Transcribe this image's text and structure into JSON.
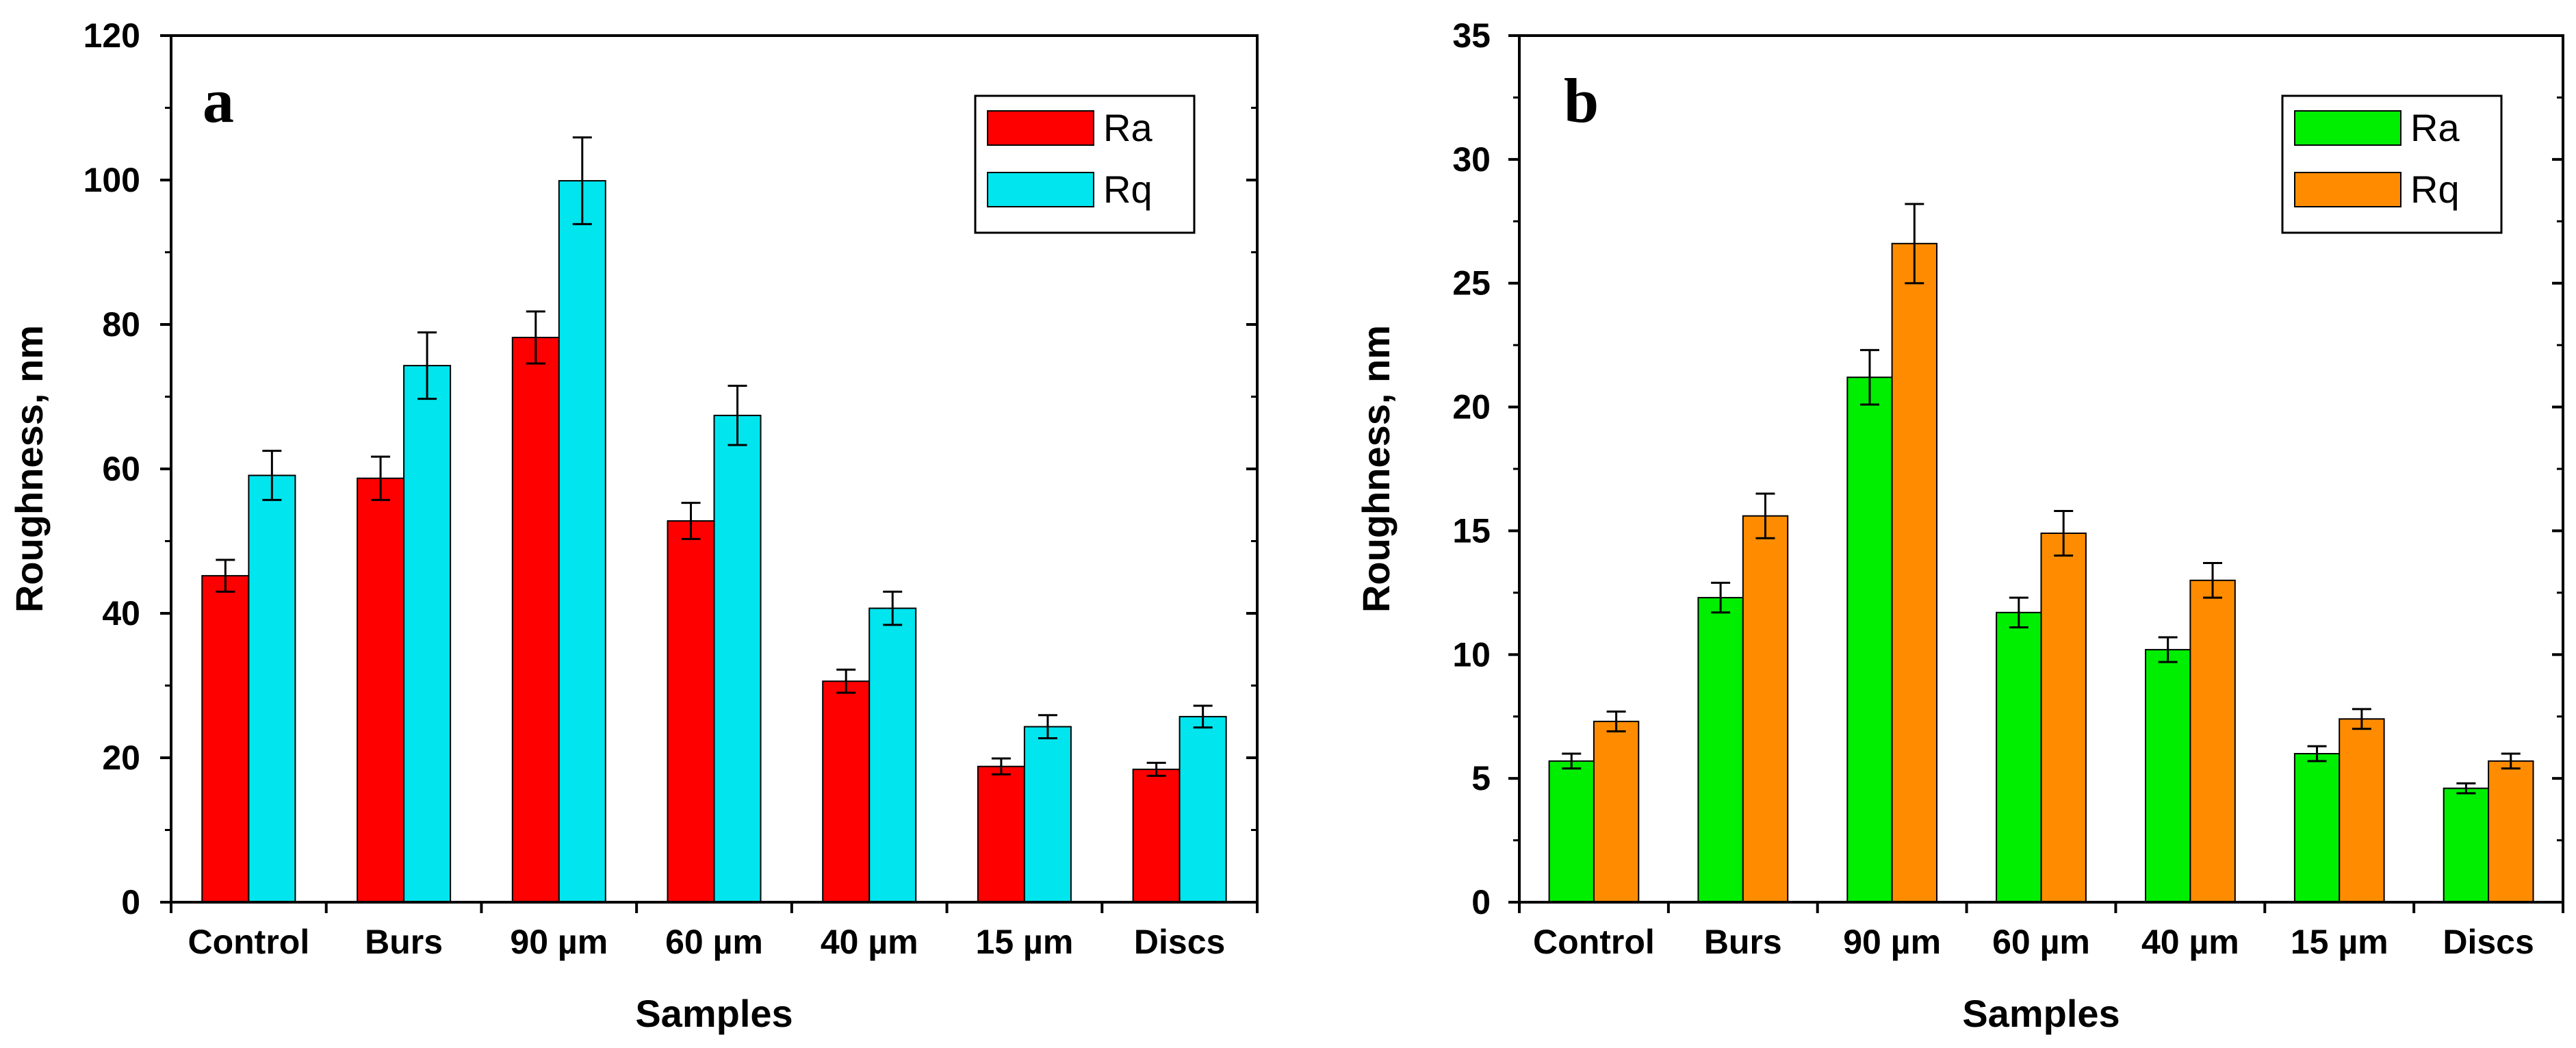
{
  "chart_data": [
    {
      "type": "bar",
      "panel_label": "a",
      "title": "",
      "xlabel": "Samples",
      "ylabel": "Roughness, nm",
      "categories": [
        "Control",
        "Burs",
        "90 µm",
        "60 µm",
        "40 µm",
        "15 µm",
        "Discs"
      ],
      "ylim": [
        0,
        120
      ],
      "yticks": [
        0,
        20,
        40,
        60,
        80,
        100,
        120
      ],
      "ytick_labels": [
        "0",
        "20",
        "40",
        "60",
        "80",
        "100",
        "120"
      ],
      "legend_position": "top-right",
      "grid": false,
      "series": [
        {
          "name": "Ra",
          "color": "#ff0000",
          "values": [
            45.2,
            58.7,
            78.2,
            52.8,
            30.6,
            18.8,
            18.4
          ],
          "errors": [
            2.2,
            3.0,
            3.6,
            2.5,
            1.6,
            1.1,
            0.9
          ]
        },
        {
          "name": "Rq",
          "color": "#00e5ee",
          "values": [
            59.1,
            74.3,
            99.9,
            67.4,
            40.7,
            24.3,
            25.7
          ],
          "errors": [
            3.4,
            4.6,
            6.0,
            4.1,
            2.3,
            1.6,
            1.5
          ]
        }
      ]
    },
    {
      "type": "bar",
      "panel_label": "b",
      "title": "",
      "xlabel": "Samples",
      "ylabel": "Roughness, nm",
      "categories": [
        "Control",
        "Burs",
        "90 µm",
        "60 µm",
        "40 µm",
        "15 µm",
        "Discs"
      ],
      "ylim": [
        0,
        35
      ],
      "yticks": [
        0,
        5,
        10,
        15,
        20,
        25,
        30,
        35
      ],
      "ytick_labels": [
        "0",
        "5",
        "10",
        "15",
        "20",
        "25",
        "30",
        "35"
      ],
      "legend_position": "top-right",
      "grid": false,
      "series": [
        {
          "name": "Ra",
          "color": "#00ee00",
          "values": [
            5.7,
            12.3,
            21.2,
            11.7,
            10.2,
            6.0,
            4.6
          ],
          "errors": [
            0.3,
            0.6,
            1.1,
            0.6,
            0.5,
            0.3,
            0.2
          ]
        },
        {
          "name": "Rq",
          "color": "#ff8c00",
          "values": [
            7.3,
            15.6,
            26.6,
            14.9,
            13.0,
            7.4,
            5.7
          ],
          "errors": [
            0.4,
            0.9,
            1.6,
            0.9,
            0.7,
            0.4,
            0.3
          ]
        }
      ]
    }
  ]
}
